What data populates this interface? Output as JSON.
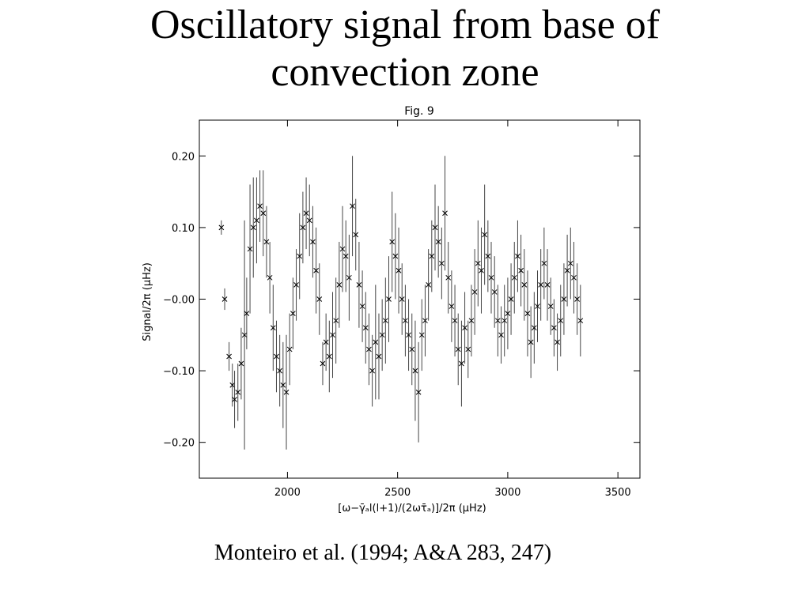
{
  "slide": {
    "title_line1": "Oscillatory signal from base of",
    "title_line2": "convection zone",
    "citation": "Monteiro et al. (1994; A&A 283, 247)"
  },
  "chart_data": {
    "type": "scatter",
    "title": "Fig. 9",
    "xlabel": "[ω−γ̄ₐl(l+1)/(2ωτ̄ₐ)]/2π    (μHz)",
    "ylabel": "Signal/2π   (μHz)",
    "xlim": [
      1600,
      3600
    ],
    "ylim": [
      -0.25,
      0.25
    ],
    "xticks": [
      2000,
      2500,
      3000,
      3500
    ],
    "xtick_labels": [
      "2000",
      "2500",
      "3000",
      "3500"
    ],
    "yticks": [
      0.2,
      0.1,
      0.0,
      -0.1,
      -0.2
    ],
    "ytick_labels": [
      "0.20",
      "0.10",
      "−0.00",
      "−0.10",
      "−0.20"
    ],
    "grid": false,
    "marker": "x",
    "error_bars": true,
    "points": [
      {
        "x": 1700,
        "y": 0.1,
        "err": 0.01
      },
      {
        "x": 1715,
        "y": 0.0,
        "err": 0.015
      },
      {
        "x": 1735,
        "y": -0.08,
        "err": 0.02
      },
      {
        "x": 1750,
        "y": -0.12,
        "err": 0.03
      },
      {
        "x": 1760,
        "y": -0.14,
        "err": 0.04
      },
      {
        "x": 1775,
        "y": -0.13,
        "err": 0.04
      },
      {
        "x": 1790,
        "y": -0.09,
        "err": 0.05
      },
      {
        "x": 1805,
        "y": -0.05,
        "err": 0.16
      },
      {
        "x": 1815,
        "y": -0.02,
        "err": 0.05
      },
      {
        "x": 1830,
        "y": 0.07,
        "err": 0.09
      },
      {
        "x": 1845,
        "y": 0.1,
        "err": 0.07
      },
      {
        "x": 1860,
        "y": 0.11,
        "err": 0.06
      },
      {
        "x": 1875,
        "y": 0.13,
        "err": 0.05
      },
      {
        "x": 1890,
        "y": 0.12,
        "err": 0.06
      },
      {
        "x": 1905,
        "y": 0.08,
        "err": 0.05
      },
      {
        "x": 1920,
        "y": 0.03,
        "err": 0.05
      },
      {
        "x": 1935,
        "y": -0.04,
        "err": 0.06
      },
      {
        "x": 1950,
        "y": -0.08,
        "err": 0.05
      },
      {
        "x": 1965,
        "y": -0.1,
        "err": 0.05
      },
      {
        "x": 1980,
        "y": -0.12,
        "err": 0.06
      },
      {
        "x": 1995,
        "y": -0.13,
        "err": 0.08
      },
      {
        "x": 2010,
        "y": -0.07,
        "err": 0.05
      },
      {
        "x": 2025,
        "y": -0.02,
        "err": 0.05
      },
      {
        "x": 2040,
        "y": 0.02,
        "err": 0.05
      },
      {
        "x": 2055,
        "y": 0.06,
        "err": 0.06
      },
      {
        "x": 2070,
        "y": 0.1,
        "err": 0.05
      },
      {
        "x": 2085,
        "y": 0.12,
        "err": 0.05
      },
      {
        "x": 2100,
        "y": 0.11,
        "err": 0.05
      },
      {
        "x": 2115,
        "y": 0.08,
        "err": 0.05
      },
      {
        "x": 2130,
        "y": 0.04,
        "err": 0.06
      },
      {
        "x": 2145,
        "y": 0.0,
        "err": 0.05
      },
      {
        "x": 2160,
        "y": -0.09,
        "err": 0.03
      },
      {
        "x": 2175,
        "y": -0.06,
        "err": 0.04
      },
      {
        "x": 2190,
        "y": -0.08,
        "err": 0.05
      },
      {
        "x": 2205,
        "y": -0.05,
        "err": 0.06
      },
      {
        "x": 2220,
        "y": -0.03,
        "err": 0.06
      },
      {
        "x": 2235,
        "y": 0.02,
        "err": 0.06
      },
      {
        "x": 2250,
        "y": 0.07,
        "err": 0.06
      },
      {
        "x": 2265,
        "y": 0.06,
        "err": 0.05
      },
      {
        "x": 2280,
        "y": 0.03,
        "err": 0.06
      },
      {
        "x": 2295,
        "y": 0.13,
        "err": 0.07
      },
      {
        "x": 2310,
        "y": 0.09,
        "err": 0.05
      },
      {
        "x": 2325,
        "y": 0.02,
        "err": 0.06
      },
      {
        "x": 2340,
        "y": -0.01,
        "err": 0.05
      },
      {
        "x": 2355,
        "y": -0.04,
        "err": 0.05
      },
      {
        "x": 2370,
        "y": -0.07,
        "err": 0.05
      },
      {
        "x": 2385,
        "y": -0.1,
        "err": 0.05
      },
      {
        "x": 2400,
        "y": -0.06,
        "err": 0.08
      },
      {
        "x": 2415,
        "y": -0.08,
        "err": 0.06
      },
      {
        "x": 2430,
        "y": -0.05,
        "err": 0.05
      },
      {
        "x": 2445,
        "y": -0.03,
        "err": 0.06
      },
      {
        "x": 2460,
        "y": 0.0,
        "err": 0.06
      },
      {
        "x": 2475,
        "y": 0.08,
        "err": 0.07
      },
      {
        "x": 2490,
        "y": 0.06,
        "err": 0.06
      },
      {
        "x": 2505,
        "y": 0.04,
        "err": 0.06
      },
      {
        "x": 2520,
        "y": 0.0,
        "err": 0.05
      },
      {
        "x": 2535,
        "y": -0.03,
        "err": 0.05
      },
      {
        "x": 2550,
        "y": -0.05,
        "err": 0.05
      },
      {
        "x": 2565,
        "y": -0.07,
        "err": 0.05
      },
      {
        "x": 2580,
        "y": -0.1,
        "err": 0.07
      },
      {
        "x": 2595,
        "y": -0.13,
        "err": 0.07
      },
      {
        "x": 2610,
        "y": -0.05,
        "err": 0.05
      },
      {
        "x": 2625,
        "y": -0.03,
        "err": 0.05
      },
      {
        "x": 2640,
        "y": 0.02,
        "err": 0.05
      },
      {
        "x": 2655,
        "y": 0.06,
        "err": 0.05
      },
      {
        "x": 2670,
        "y": 0.1,
        "err": 0.06
      },
      {
        "x": 2685,
        "y": 0.08,
        "err": 0.05
      },
      {
        "x": 2700,
        "y": 0.05,
        "err": 0.05
      },
      {
        "x": 2715,
        "y": 0.12,
        "err": 0.08
      },
      {
        "x": 2730,
        "y": 0.03,
        "err": 0.05
      },
      {
        "x": 2745,
        "y": -0.01,
        "err": 0.05
      },
      {
        "x": 2760,
        "y": -0.03,
        "err": 0.05
      },
      {
        "x": 2775,
        "y": -0.07,
        "err": 0.05
      },
      {
        "x": 2790,
        "y": -0.09,
        "err": 0.06
      },
      {
        "x": 2805,
        "y": -0.04,
        "err": 0.05
      },
      {
        "x": 2820,
        "y": -0.07,
        "err": 0.04
      },
      {
        "x": 2835,
        "y": -0.03,
        "err": 0.05
      },
      {
        "x": 2850,
        "y": 0.01,
        "err": 0.06
      },
      {
        "x": 2865,
        "y": 0.05,
        "err": 0.06
      },
      {
        "x": 2880,
        "y": 0.04,
        "err": 0.06
      },
      {
        "x": 2895,
        "y": 0.09,
        "err": 0.07
      },
      {
        "x": 2910,
        "y": 0.06,
        "err": 0.05
      },
      {
        "x": 2925,
        "y": 0.03,
        "err": 0.05
      },
      {
        "x": 2940,
        "y": 0.01,
        "err": 0.05
      },
      {
        "x": 2955,
        "y": -0.03,
        "err": 0.05
      },
      {
        "x": 2970,
        "y": -0.05,
        "err": 0.04
      },
      {
        "x": 2985,
        "y": -0.03,
        "err": 0.05
      },
      {
        "x": 3000,
        "y": -0.02,
        "err": 0.05
      },
      {
        "x": 3015,
        "y": 0.0,
        "err": 0.05
      },
      {
        "x": 3030,
        "y": 0.03,
        "err": 0.05
      },
      {
        "x": 3045,
        "y": 0.06,
        "err": 0.05
      },
      {
        "x": 3060,
        "y": 0.04,
        "err": 0.05
      },
      {
        "x": 3075,
        "y": 0.02,
        "err": 0.05
      },
      {
        "x": 3090,
        "y": -0.02,
        "err": 0.06
      },
      {
        "x": 3105,
        "y": -0.06,
        "err": 0.05
      },
      {
        "x": 3120,
        "y": -0.04,
        "err": 0.05
      },
      {
        "x": 3135,
        "y": -0.01,
        "err": 0.05
      },
      {
        "x": 3150,
        "y": 0.02,
        "err": 0.05
      },
      {
        "x": 3165,
        "y": 0.05,
        "err": 0.05
      },
      {
        "x": 3180,
        "y": 0.02,
        "err": 0.05
      },
      {
        "x": 3195,
        "y": -0.01,
        "err": 0.04
      },
      {
        "x": 3210,
        "y": -0.04,
        "err": 0.04
      },
      {
        "x": 3225,
        "y": -0.06,
        "err": 0.04
      },
      {
        "x": 3240,
        "y": -0.03,
        "err": 0.05
      },
      {
        "x": 3255,
        "y": 0.0,
        "err": 0.05
      },
      {
        "x": 3270,
        "y": 0.04,
        "err": 0.05
      },
      {
        "x": 3285,
        "y": 0.05,
        "err": 0.05
      },
      {
        "x": 3300,
        "y": 0.03,
        "err": 0.05
      },
      {
        "x": 3315,
        "y": 0.0,
        "err": 0.05
      },
      {
        "x": 3330,
        "y": -0.03,
        "err": 0.05
      }
    ]
  }
}
